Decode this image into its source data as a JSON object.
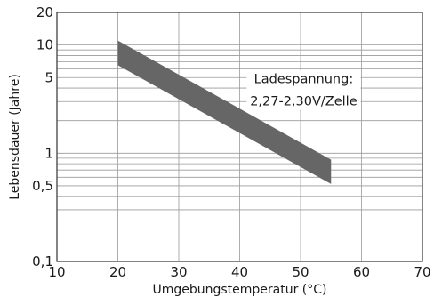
{
  "chart_data": {
    "type": "area",
    "title": "",
    "xlabel": "Umgebungstemperatur (°C)",
    "ylabel": "Lebensdauer (Jahre)",
    "x_scale": "linear",
    "y_scale": "log",
    "xlim": [
      10,
      70
    ],
    "ylim": [
      0.1,
      20
    ],
    "x_ticks": [
      10,
      20,
      30,
      40,
      50,
      60,
      70
    ],
    "x_tick_labels": [
      "10",
      "20",
      "30",
      "40",
      "50",
      "60",
      "70"
    ],
    "y_ticks": [
      0.1,
      0.5,
      1,
      5,
      10,
      20
    ],
    "y_tick_labels": [
      "0,1",
      "0,5",
      "1",
      "5",
      "10",
      "20"
    ],
    "grid": true,
    "band": {
      "x": [
        20,
        55
      ],
      "upper": [
        11,
        0.87
      ],
      "lower": [
        6.5,
        0.52
      ],
      "color": "#666666"
    },
    "annotation": {
      "lines": [
        "Ladespannung:",
        "2,27-2,30V/Zelle"
      ]
    }
  }
}
